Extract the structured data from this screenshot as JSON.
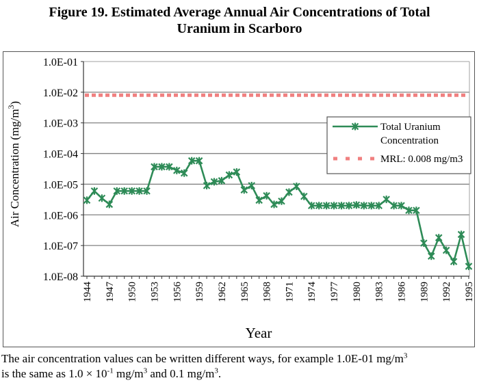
{
  "figure": {
    "title_line1": "Figure 19. Estimated Average Annual Air Concentrations of Total",
    "title_line2": "Uranium in Scarboro",
    "caption_part1": "The air concentration values can be written different ways, for example 1.0E-01 mg/m",
    "caption_sup1": "3",
    "caption_part2": "is the same as 1.0 × 10",
    "caption_sup2": "-1",
    "caption_part3": " mg/m",
    "caption_sup3": "3",
    "caption_part4": " and 0.1 mg/m",
    "caption_sup4": "3",
    "caption_part5": "."
  },
  "chart_data": {
    "type": "line",
    "title": "Figure 19. Estimated Average Annual Air Concentrations of Total Uranium in Scarboro",
    "xlabel": "Year",
    "ylabel": "Air Concentration (mg/m",
    "ylabel_sup": "3",
    "ylabel_close": ")",
    "yscale": "log",
    "ylim": [
      1e-08,
      0.1
    ],
    "xlim": [
      1944,
      1995
    ],
    "y_ticks": [
      0.1,
      0.01,
      0.001,
      0.0001,
      1e-05,
      1e-06,
      1e-07,
      1e-08
    ],
    "y_tick_labels": [
      "1.0E-01",
      "1.0E-02",
      "1.0E-03",
      "1.0E-04",
      "1.0E-05",
      "1.0E-06",
      "1.0E-07",
      "1.0E-08"
    ],
    "x_tick_labels": [
      "1944",
      "1947",
      "1950",
      "1953",
      "1956",
      "1959",
      "1962",
      "1965",
      "1968",
      "1971",
      "1974",
      "1977",
      "1980",
      "1983",
      "1986",
      "1989",
      "1992",
      "1995"
    ],
    "grid": true,
    "legend_position": "right",
    "x": [
      1944,
      1945,
      1946,
      1947,
      1948,
      1949,
      1950,
      1951,
      1952,
      1953,
      1954,
      1955,
      1956,
      1957,
      1958,
      1959,
      1960,
      1961,
      1962,
      1963,
      1964,
      1965,
      1966,
      1967,
      1968,
      1969,
      1970,
      1971,
      1972,
      1973,
      1974,
      1975,
      1976,
      1977,
      1978,
      1979,
      1980,
      1981,
      1982,
      1983,
      1984,
      1985,
      1986,
      1987,
      1988,
      1989,
      1990,
      1991,
      1992,
      1993,
      1994,
      1995
    ],
    "series": [
      {
        "name": "Total Uranium Concentration",
        "legend_line1": "Total Uranium",
        "legend_line2": "Concentration",
        "color": "#2e8b57",
        "marker": "asterisk",
        "values": [
          3e-06,
          6e-06,
          3.5e-06,
          2.2e-06,
          6e-06,
          6e-06,
          6e-06,
          6e-06,
          6e-06,
          3.7e-05,
          3.7e-05,
          3.7e-05,
          2.8e-05,
          2.3e-05,
          5.8e-05,
          5.8e-05,
          9e-06,
          1.2e-05,
          1.3e-05,
          2e-05,
          2.5e-05,
          6.5e-06,
          9e-06,
          3e-06,
          4.2e-06,
          2.2e-06,
          2.8e-06,
          5.5e-06,
          8.5e-06,
          4e-06,
          2e-06,
          2e-06,
          2e-06,
          2e-06,
          2e-06,
          2e-06,
          2.1e-06,
          2e-06,
          2e-06,
          2e-06,
          3.2e-06,
          2e-06,
          2e-06,
          1.4e-06,
          1.4e-06,
          1.2e-07,
          4.5e-08,
          1.8e-07,
          7e-08,
          3e-08,
          2.3e-07,
          2.1e-08
        ]
      },
      {
        "name": "MRL: 0.008 mg/m3",
        "color": "#f08080",
        "style": "dashed",
        "constant": 0.008
      }
    ]
  }
}
